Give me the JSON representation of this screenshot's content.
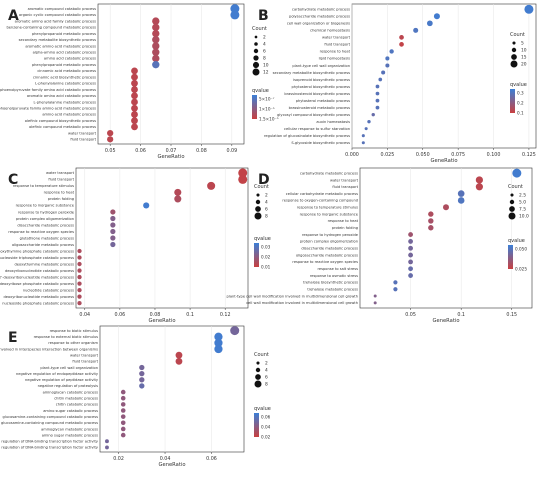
{
  "colors": {
    "low_q": "#c94040",
    "high_q": "#3b7fd6",
    "frame": "#333333",
    "grid": "#e6e6e6"
  },
  "chart_data": [
    {
      "id": "A",
      "type": "scatter",
      "panel_label": "A",
      "xlabel": "GeneRatio",
      "xlim": [
        0.046,
        0.094
      ],
      "xticks": [
        0.05,
        0.06,
        0.07,
        0.08,
        0.09
      ],
      "legend_count_title": "Count",
      "legend_count_values": [
        "2",
        "4",
        "6",
        "8",
        "10",
        "12"
      ],
      "legend_q_title": "qvalue",
      "legend_q_labels": [
        "5×10⁻⁷",
        "1×10⁻⁶",
        "1.5×10⁻⁶"
      ],
      "categories": [
        "aromatic compound catabolic process",
        "organic cyclic compound catabolic process",
        "aromatic amino acid family catabolic process",
        "benzene-containing compound metabolic process",
        "phenylpropanoid metabolic process",
        "secondary metabolite biosynthetic process",
        "aromatic amino acid metabolic process",
        "alpha-amino acid catabolic process",
        "amino acid catabolic process",
        "phenylpropanoid metabolic process",
        "cinnamic acid metabolic process",
        "cinnamic acid biosynthetic process",
        "L-phenylalanine catabolic process",
        "erythrose 4-phosphate/phosphoenolpyruvate family amino acid catabolic process",
        "aromatic amino acid catabolic process",
        "L-phenylalanine metabolic process",
        "erythrose 4-phosphate/phosphoenolpyruvate family amino acid metabolic process",
        "amino acid metabolic process",
        "olefinic compound biosynthetic process",
        "olefinic compound metabolic process",
        "water transport",
        "fluid transport"
      ],
      "x": [
        0.091,
        0.091,
        0.065,
        0.065,
        0.065,
        0.065,
        0.065,
        0.065,
        0.065,
        0.065,
        0.058,
        0.058,
        0.058,
        0.058,
        0.058,
        0.058,
        0.058,
        0.058,
        0.058,
        0.058,
        0.05,
        0.05
      ],
      "count": [
        12,
        12,
        9,
        9,
        9,
        9,
        9,
        9,
        9,
        9,
        8,
        8,
        8,
        8,
        8,
        8,
        8,
        8,
        8,
        8,
        7,
        7
      ],
      "q": [
        0.95,
        0.95,
        0.15,
        0.15,
        0.15,
        0.2,
        0.2,
        0.2,
        0.2,
        0.8,
        0.1,
        0.1,
        0.1,
        0.1,
        0.1,
        0.1,
        0.1,
        0.1,
        0.1,
        0.1,
        0.1,
        0.1
      ]
    },
    {
      "id": "B",
      "type": "scatter",
      "panel_label": "B",
      "xlabel": "GeneRatio",
      "xlim": [
        0.0,
        0.13
      ],
      "xticks": [
        0.0,
        0.025,
        0.05,
        0.075,
        0.1,
        0.125
      ],
      "xtick_labels": [
        "0.000",
        "0.025",
        "0.050",
        "0.075",
        "0.100",
        "0.125"
      ],
      "legend_count_title": "Count",
      "legend_count_values": [
        "5",
        "10",
        "15",
        "20"
      ],
      "legend_q_title": "qvalue",
      "legend_q_labels": [
        "0.3",
        "0.2",
        "0.1"
      ],
      "categories": [
        "carbohydrate metabolic process",
        "polysaccharide metabolic process",
        "cell wall organization or biogenesis",
        "chemical homeostasis",
        "water transport",
        "fluid transport",
        "response to heat",
        "lipid homeostasis",
        "plant-type cell wall organization",
        "secondary metabolite biosynthetic process",
        "isoprenoid biosynthetic process",
        "phytosterol biosynthetic process",
        "brassinosteroid biosynthetic process",
        "phytosterol metabolic process",
        "brassinosteroid metabolic process",
        "glycosyl compound biosynthetic process",
        "auxin homeostasis",
        "cellular response to sulfur starvation",
        "regulation of glucosinolate biosynthetic process",
        "S-glycoside biosynthetic process"
      ],
      "x": [
        0.125,
        0.06,
        0.055,
        0.045,
        0.035,
        0.035,
        0.028,
        0.025,
        0.025,
        0.022,
        0.02,
        0.018,
        0.018,
        0.018,
        0.018,
        0.015,
        0.012,
        0.01,
        0.008,
        0.008
      ],
      "count": [
        20,
        11,
        10,
        8,
        7,
        7,
        6,
        5,
        5,
        5,
        4,
        4,
        4,
        4,
        4,
        3,
        3,
        2,
        2,
        2
      ],
      "q": [
        0.95,
        0.95,
        0.9,
        0.85,
        0.1,
        0.05,
        0.85,
        0.85,
        0.8,
        0.8,
        0.8,
        0.8,
        0.8,
        0.8,
        0.8,
        0.7,
        0.8,
        0.8,
        0.8,
        0.8
      ]
    },
    {
      "id": "C",
      "type": "scatter",
      "panel_label": "C",
      "xlabel": "GeneRatio",
      "xlim": [
        0.035,
        0.133
      ],
      "xticks": [
        0.04,
        0.06,
        0.08,
        0.1,
        0.12
      ],
      "legend_count_title": "Count",
      "legend_count_values": [
        "2",
        "4",
        "6",
        "8"
      ],
      "legend_q_title": "qvalue",
      "legend_q_labels": [
        "0.03",
        "0.02",
        "0.01"
      ],
      "categories": [
        "water transport",
        "fluid transport",
        "response to temperature stimulus",
        "response to heat",
        "protein folding",
        "response to inorganic substance",
        "response to hydrogen peroxide",
        "protein complex oligomerization",
        "disaccharide metabolic process",
        "response to reactive oxygen species",
        "glutathione metabolic process",
        "oligosaccharide metabolic process",
        "deoxythymine phosphate catabolic process",
        "nucleoside triphosphate catabolic process",
        "deoxythymine metabolic process",
        "deoxyribonucleotide catabolic process",
        "2'-deoxyribonucleotide metabolic process",
        "deoxyribose phosphate catabolic process",
        "nucleotide catabolic process",
        "deoxyribonucleotide metabolic process",
        "nucleoside phosphate catabolic process"
      ],
      "x": [
        0.13,
        0.13,
        0.112,
        0.093,
        0.093,
        0.075,
        0.056,
        0.056,
        0.056,
        0.056,
        0.056,
        0.056,
        0.037,
        0.037,
        0.037,
        0.037,
        0.037,
        0.037,
        0.037,
        0.037,
        0.037
      ],
      "count": [
        7,
        7,
        6,
        5,
        5,
        4,
        3,
        3,
        3,
        3,
        3,
        3,
        2,
        2,
        2,
        2,
        2,
        2,
        2,
        2,
        2
      ],
      "q": [
        0.05,
        0.05,
        0.1,
        0.15,
        0.2,
        0.95,
        0.3,
        0.5,
        0.5,
        0.5,
        0.5,
        0.6,
        0.2,
        0.2,
        0.2,
        0.2,
        0.2,
        0.2,
        0.2,
        0.2,
        0.2
      ]
    },
    {
      "id": "D",
      "type": "scatter",
      "panel_label": "D",
      "xlabel": "GeneRatio",
      "xlim": [
        0.0,
        0.17
      ],
      "xticks": [
        0.05,
        0.1,
        0.15
      ],
      "legend_count_title": "Count",
      "legend_count_values": [
        "2.5",
        "5.0",
        "7.5",
        "10.0"
      ],
      "legend_q_title": "qvalue",
      "legend_q_labels": [
        "0.050",
        "0.025"
      ],
      "categories": [
        "carbohydrate metabolic process",
        "water transport",
        "fluid transport",
        "cellular carbohydrate metabolic process",
        "response to oxygen-containing compound",
        "response to temperature stimulus",
        "response to inorganic substance",
        "response to heat",
        "protein folding",
        "response to hydrogen peroxide",
        "protein complex oligomerization",
        "disaccharide metabolic process",
        "oligosaccharide metabolic process",
        "response to reactive oxygen species",
        "response to salt stress",
        "response to osmotic stress",
        "trehalose biosynthetic process",
        "trehalose metabolic process",
        "plant-type cell wall modification involved in multidimensional cell growth",
        "cell wall modification involved in multidimensional cell growth"
      ],
      "x": [
        0.155,
        0.118,
        0.118,
        0.1,
        0.1,
        0.085,
        0.07,
        0.07,
        0.07,
        0.05,
        0.05,
        0.05,
        0.05,
        0.05,
        0.05,
        0.05,
        0.035,
        0.035,
        0.015,
        0.015
      ],
      "count": [
        11,
        8,
        8,
        7,
        7,
        6,
        5,
        5,
        5,
        4,
        4,
        4,
        4,
        4,
        4,
        4,
        3,
        3,
        1,
        1
      ],
      "q": [
        0.95,
        0.1,
        0.1,
        0.8,
        0.85,
        0.2,
        0.2,
        0.25,
        0.25,
        0.3,
        0.6,
        0.6,
        0.6,
        0.6,
        0.7,
        0.7,
        0.8,
        0.8,
        0.5,
        0.5
      ]
    },
    {
      "id": "E",
      "type": "scatter",
      "panel_label": "E",
      "xlabel": "GeneRatio",
      "xlim": [
        0.012,
        0.074
      ],
      "xticks": [
        0.02,
        0.04,
        0.06
      ],
      "legend_count_title": "Count",
      "legend_count_values": [
        "2",
        "4",
        "6",
        "8"
      ],
      "legend_q_title": "qvalue",
      "legend_q_labels": [
        "0.06",
        "0.04",
        "0.02"
      ],
      "categories": [
        "response to biotic stimulus",
        "response to external biotic stimulus",
        "response to other organism",
        "biological process involved in interspecies interaction between organisms",
        "water transport",
        "fluid transport",
        "plant-type cell wall organization",
        "negative regulation of endopeptidase activity",
        "negative regulation of peptidase activity",
        "negative regulation of proteolysis",
        "aminoglycan catabolic process",
        "chitin metabolic process",
        "chitin catabolic process",
        "amino sugar catabolic process",
        "glucosamine-containing compound catabolic process",
        "glucosamine-containing compound metabolic process",
        "aminoglycan metabolic process",
        "amino sugar metabolic process",
        "regulation of DNA-binding transcription factor activity",
        "positive regulation of DNA-binding transcription factor activity"
      ],
      "x": [
        0.07,
        0.063,
        0.063,
        0.063,
        0.046,
        0.046,
        0.03,
        0.03,
        0.03,
        0.03,
        0.022,
        0.022,
        0.022,
        0.022,
        0.022,
        0.022,
        0.022,
        0.022,
        0.015,
        0.015
      ],
      "count": [
        9,
        8,
        8,
        8,
        6,
        6,
        4,
        4,
        4,
        4,
        3,
        3,
        3,
        3,
        3,
        3,
        3,
        3,
        2,
        2
      ],
      "q": [
        0.6,
        0.95,
        0.95,
        0.95,
        0.1,
        0.1,
        0.6,
        0.6,
        0.6,
        0.7,
        0.4,
        0.4,
        0.4,
        0.4,
        0.4,
        0.4,
        0.4,
        0.4,
        0.6,
        0.6
      ]
    }
  ]
}
